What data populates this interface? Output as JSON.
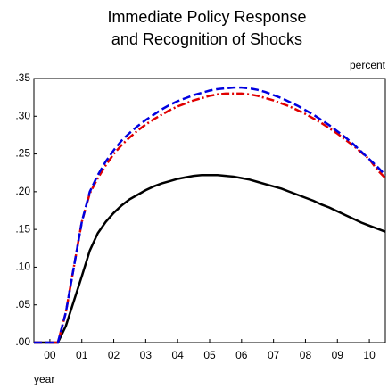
{
  "chart_data": {
    "type": "line",
    "title": [
      "Immediate Policy Response",
      "and Recognition of Shocks"
    ],
    "y_label": "percent",
    "x_label": "year",
    "x": [
      2000,
      2000.25,
      2000.5,
      2000.75,
      2001,
      2001.25,
      2001.5,
      2001.75,
      2002,
      2002.25,
      2002.5,
      2002.75,
      2003,
      2003.25,
      2003.5,
      2003.75,
      2004,
      2004.25,
      2004.5,
      2004.75,
      2005,
      2005.25,
      2005.5,
      2005.75,
      2006,
      2006.25,
      2006.5,
      2006.75,
      2007,
      2007.25,
      2007.5,
      2007.75,
      2008,
      2008.25,
      2008.5,
      2008.75,
      2009,
      2009.25,
      2009.5,
      2009.75,
      2010,
      2010.25,
      2010.5,
      2010.75,
      2011
    ],
    "series": [
      {
        "color": "#000000",
        "dash": "solid",
        "values": [
          0,
          0,
          0,
          0,
          0.022,
          0.055,
          0.088,
          0.122,
          0.145,
          0.16,
          0.172,
          0.182,
          0.19,
          0.196,
          0.202,
          0.207,
          0.211,
          0.214,
          0.217,
          0.219,
          0.221,
          0.222,
          0.222,
          0.222,
          0.221,
          0.22,
          0.218,
          0.216,
          0.213,
          0.21,
          0.207,
          0.204,
          0.2,
          0.196,
          0.192,
          0.188,
          0.183,
          0.179,
          0.174,
          0.169,
          0.164,
          0.159,
          0.155,
          0.151,
          0.147
        ]
      },
      {
        "color": "#e00000",
        "dash": "dashdot",
        "values": [
          0,
          0,
          0,
          0,
          0.04,
          0.1,
          0.16,
          0.198,
          0.218,
          0.235,
          0.25,
          0.262,
          0.272,
          0.281,
          0.289,
          0.296,
          0.302,
          0.308,
          0.313,
          0.317,
          0.321,
          0.324,
          0.327,
          0.329,
          0.33,
          0.33,
          0.33,
          0.329,
          0.327,
          0.324,
          0.321,
          0.317,
          0.313,
          0.308,
          0.303,
          0.297,
          0.291,
          0.284,
          0.277,
          0.269,
          0.261,
          0.252,
          0.243,
          0.229,
          0.218
        ]
      },
      {
        "color": "#0000e0",
        "dash": "dashed",
        "values": [
          0,
          0,
          0,
          0,
          0.04,
          0.1,
          0.16,
          0.2,
          0.222,
          0.24,
          0.255,
          0.268,
          0.278,
          0.287,
          0.295,
          0.302,
          0.309,
          0.315,
          0.32,
          0.324,
          0.328,
          0.331,
          0.334,
          0.336,
          0.337,
          0.338,
          0.338,
          0.337,
          0.335,
          0.332,
          0.328,
          0.324,
          0.319,
          0.314,
          0.308,
          0.302,
          0.295,
          0.288,
          0.28,
          0.272,
          0.263,
          0.253,
          0.243,
          0.233,
          0.222
        ]
      }
    ],
    "xlim": [
      2000,
      2011
    ],
    "xticks": [
      {
        "value": 2000.5,
        "label": "00"
      },
      {
        "value": 2001.5,
        "label": "01"
      },
      {
        "value": 2002.5,
        "label": "02"
      },
      {
        "value": 2003.5,
        "label": "03"
      },
      {
        "value": 2004.5,
        "label": "04"
      },
      {
        "value": 2005.5,
        "label": "05"
      },
      {
        "value": 2006.5,
        "label": "06"
      },
      {
        "value": 2007.5,
        "label": "07"
      },
      {
        "value": 2008.5,
        "label": "08"
      },
      {
        "value": 2009.5,
        "label": "09"
      },
      {
        "value": 2010.5,
        "label": "10"
      }
    ],
    "ylim": [
      0,
      0.35
    ],
    "yticks": [
      {
        "value": 0,
        "label": ".00"
      },
      {
        "value": 0.05,
        "label": ".05"
      },
      {
        "value": 0.1,
        "label": ".10"
      },
      {
        "value": 0.15,
        "label": ".15"
      },
      {
        "value": 0.2,
        "label": ".20"
      },
      {
        "value": 0.25,
        "label": ".25"
      },
      {
        "value": 0.3,
        "label": ".30"
      },
      {
        "value": 0.35,
        "label": ".35"
      }
    ],
    "grid": false
  }
}
